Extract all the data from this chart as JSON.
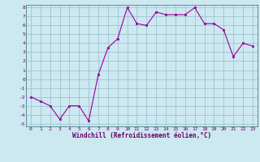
{
  "x": [
    0,
    1,
    2,
    3,
    4,
    5,
    6,
    7,
    8,
    9,
    10,
    11,
    12,
    13,
    14,
    15,
    16,
    17,
    18,
    19,
    20,
    21,
    22,
    23
  ],
  "y": [
    -2,
    -2.5,
    -3,
    -4.5,
    -3,
    -3,
    -4.7,
    0.5,
    3.5,
    4.5,
    8.0,
    6.2,
    6.0,
    7.5,
    7.2,
    7.2,
    7.2,
    8.0,
    6.2,
    6.2,
    5.5,
    2.5,
    4.0,
    3.7
  ],
  "line_color": "#990099",
  "marker": "s",
  "marker_size": 2.0,
  "bg_color": "#cce8f0",
  "grid_color": "#99bbcc",
  "xlabel": "Windchill (Refroidissement éolien,°C)",
  "xlabel_color": "#660066",
  "tick_color": "#660066",
  "ylim": [
    -5,
    8
  ],
  "xlim": [
    -0.5,
    23.5
  ],
  "yticks": [
    -5,
    -4,
    -3,
    -2,
    -1,
    0,
    1,
    2,
    3,
    4,
    5,
    6,
    7,
    8
  ],
  "xticks": [
    0,
    1,
    2,
    3,
    4,
    5,
    6,
    7,
    8,
    9,
    10,
    11,
    12,
    13,
    14,
    15,
    16,
    17,
    18,
    19,
    20,
    21,
    22,
    23
  ]
}
